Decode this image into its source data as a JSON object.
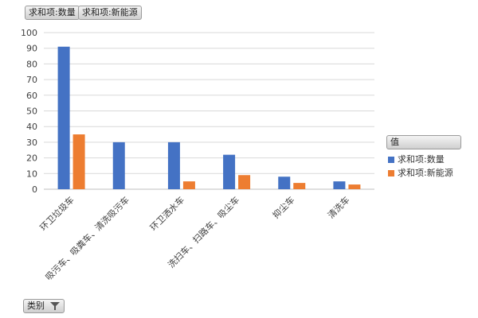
{
  "field_buttons": {
    "quantity": "求和项:数量",
    "new_energy": "求和项:新能源",
    "category": "类别"
  },
  "legend": {
    "title": "值",
    "items": [
      {
        "label": "求和项:数量",
        "color": "#4472c4"
      },
      {
        "label": "求和项:新能源",
        "color": "#ed7d31"
      }
    ]
  },
  "chart_data": {
    "type": "bar",
    "categories": [
      "环卫垃圾车",
      "吸污车、吸粪车、清洗吸污车",
      "环卫洒水车",
      "洗扫车、扫路车、吸尘车",
      "抑尘车",
      "清洗车"
    ],
    "series": [
      {
        "name": "求和项:数量",
        "values": [
          91,
          30,
          30,
          22,
          8,
          5
        ],
        "color": "#4472c4"
      },
      {
        "name": "求和项:新能源",
        "values": [
          35,
          0,
          5,
          9,
          4,
          3
        ],
        "color": "#ed7d31"
      }
    ],
    "yticks": [
      "0",
      "10",
      "20",
      "30",
      "40",
      "50",
      "60",
      "70",
      "80",
      "90",
      "100"
    ],
    "ylim": [
      0,
      100
    ],
    "grid": true,
    "legend_position": "right"
  }
}
